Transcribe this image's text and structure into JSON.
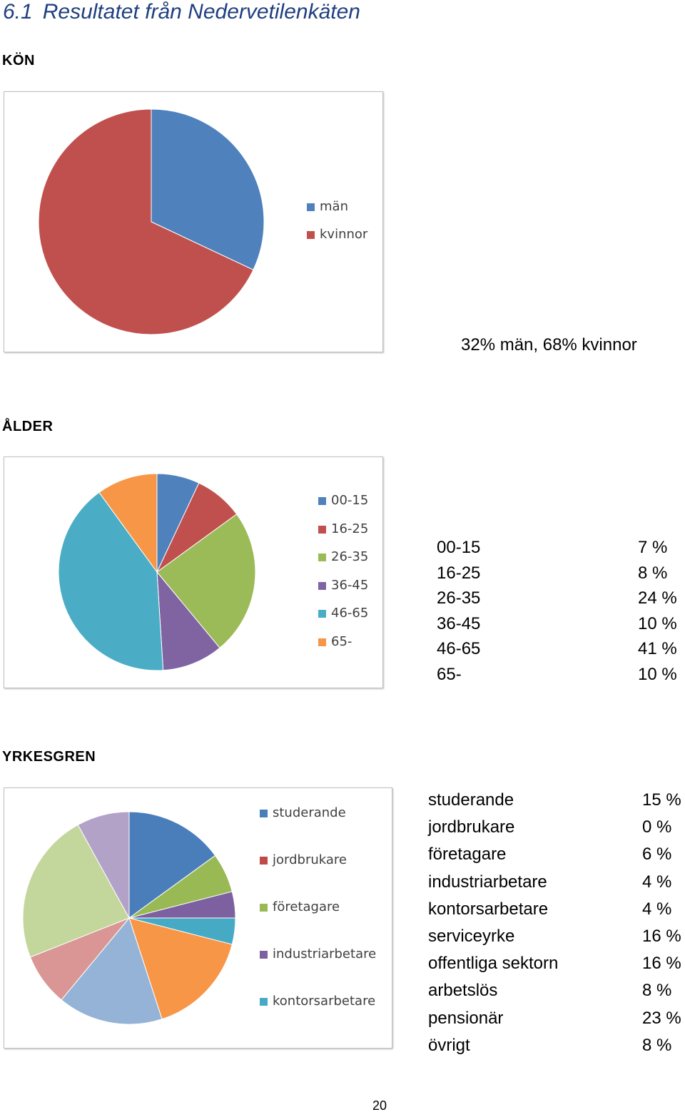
{
  "page": {
    "heading_number": "6.1",
    "heading_text": "Resultatet från Nedervetilenkäten",
    "page_number": "20"
  },
  "sections": {
    "kon": "KÖN",
    "alder": "ÅLDER",
    "yrkesgren": "YRKESGREN"
  },
  "kon_caption": "32% män, 68% kvinnor",
  "alder_table": [
    {
      "label": "00-15",
      "value": "7 %"
    },
    {
      "label": "16-25",
      "value": "8 %"
    },
    {
      "label": "26-35",
      "value": "24 %"
    },
    {
      "label": "36-45",
      "value": "10 %"
    },
    {
      "label": "46-65",
      "value": "41 %"
    },
    {
      "label": "65-",
      "value": "10 %"
    }
  ],
  "yrkes_table": [
    {
      "label": "studerande",
      "value": "15 %"
    },
    {
      "label": "jordbrukare",
      "value": "0 %"
    },
    {
      "label": "företagare",
      "value": "6 %"
    },
    {
      "label": "industriarbetare",
      "value": "4 %"
    },
    {
      "label": "kontorsarbetare",
      "value": "4 %"
    },
    {
      "label": "serviceyrke",
      "value": "16 %"
    },
    {
      "label": "offentliga sektorn",
      "value": "16 %"
    },
    {
      "label": "arbetslös",
      "value": "8 %"
    },
    {
      "label": "pensionär",
      "value": "23 %"
    },
    {
      "label": "övrigt",
      "value": "8 %"
    }
  ],
  "chart_data": [
    {
      "type": "pie",
      "categories": [
        "män",
        "kvinnor"
      ],
      "values": [
        32,
        68
      ],
      "colors": [
        "#4F81BD",
        "#C0504D"
      ],
      "legend_entries": [
        "män",
        "kvinnor"
      ],
      "legend_position": "right"
    },
    {
      "type": "pie",
      "categories": [
        "00-15",
        "16-25",
        "26-35",
        "36-45",
        "46-65",
        "65-"
      ],
      "values": [
        7,
        8,
        24,
        10,
        41,
        10
      ],
      "colors": [
        "#4F81BD",
        "#C0504D",
        "#9BBB59",
        "#8064A2",
        "#4BACC6",
        "#F79646"
      ],
      "legend_entries": [
        "00-15",
        "16-25",
        "26-35",
        "36-45",
        "46-65",
        "65-"
      ],
      "legend_position": "right"
    },
    {
      "type": "pie",
      "categories": [
        "studerande",
        "jordbrukare",
        "företagare",
        "industriarbetare",
        "kontorsarbetare",
        "serviceyrke",
        "offentliga sektorn",
        "arbetslös",
        "pensionär",
        "övrigt"
      ],
      "values": [
        15,
        0,
        6,
        4,
        4,
        16,
        16,
        8,
        23,
        8
      ],
      "colors": [
        "#4A7EBB",
        "#BE4B48",
        "#98B954",
        "#7D60A0",
        "#46AAC5",
        "#F79646",
        "#95B3D7",
        "#D99694",
        "#C3D69B",
        "#B3A2C7"
      ],
      "legend_entries": [
        "studerande",
        "jordbrukare",
        "företagare",
        "industriarbetare",
        "kontorsarbetare"
      ],
      "legend_position": "right"
    }
  ]
}
